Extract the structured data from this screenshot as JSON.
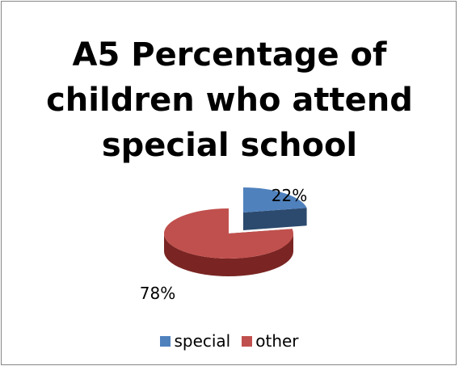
{
  "chart_data": {
    "type": "pie",
    "title": "A5 Percentage of\nchildren who attend\nspecial school",
    "categories": [
      "special",
      "other"
    ],
    "values": [
      22,
      78
    ],
    "data_labels": [
      "22%",
      "78%"
    ],
    "colors": [
      "#4f81bd",
      "#c0504d"
    ],
    "side_colors": [
      "#2c4a6e",
      "#7a2523"
    ],
    "legend": "bottom",
    "style": "3d-exploded"
  }
}
